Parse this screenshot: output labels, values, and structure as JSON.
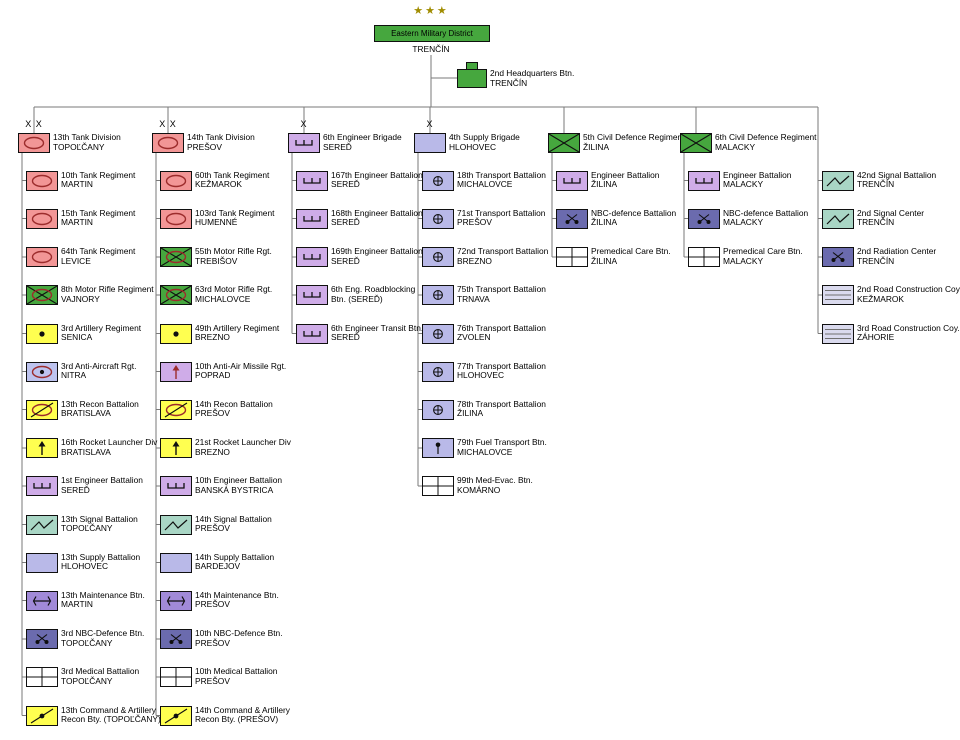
{
  "palette": {
    "green": "#46a73e",
    "line": "#7a7a7a",
    "stars": "#a08c00"
  },
  "header": {
    "stars": "★★★",
    "district": {
      "name": "Eastern Military District",
      "location": "TRENČÍN"
    },
    "hq": {
      "name": "2nd Headquarters Btn.",
      "location": "TRENČÍN",
      "type": "hq"
    }
  },
  "types": {
    "armor": {
      "fill": "#f29696",
      "symbol": "oval"
    },
    "motor-rifle": {
      "fill": "#46a73e",
      "symbol": "oval-x"
    },
    "infantry": {
      "fill": "#46a73e",
      "symbol": "x"
    },
    "artillery": {
      "fill": "#ffff50",
      "symbol": "dot"
    },
    "anti-air": {
      "fill": "#bdc3ee",
      "symbol": "oval-dot"
    },
    "aa-missile": {
      "fill": "#cface8",
      "symbol": "missile"
    },
    "recon": {
      "fill": "#ffff50",
      "symbol": "oval-slash"
    },
    "rocket": {
      "fill": "#ffff50",
      "symbol": "missile-dark"
    },
    "engineer": {
      "fill": "#cface8",
      "symbol": "engineer"
    },
    "signal": {
      "fill": "#a9d6c5",
      "symbol": "flash"
    },
    "supply": {
      "fill": "#b9b9e8",
      "symbol": "none"
    },
    "transport": {
      "fill": "#b9b9e8",
      "symbol": "wheel"
    },
    "fuel": {
      "fill": "#b9b9e8",
      "symbol": "pol"
    },
    "maintenance": {
      "fill": "#a18ad8",
      "symbol": "wrench"
    },
    "nbc": {
      "fill": "#6b6bae",
      "symbol": "retorts"
    },
    "radiation": {
      "fill": "#6b6bae",
      "symbol": "retorts"
    },
    "medical": {
      "fill": "#ffffff",
      "symbol": "cross"
    },
    "road": {
      "fill": "#dadaee",
      "symbol": "stripes"
    },
    "cmd-recon": {
      "fill": "#ffff50",
      "symbol": "dot-slash"
    },
    "hq": {
      "fill": "#46a73e",
      "symbol": "hq"
    }
  },
  "columns": [
    {
      "echelon": "X X",
      "head": {
        "name": "13th Tank Division",
        "location": "TOPOĽČANY",
        "type": "armor"
      },
      "units": [
        {
          "name": "10th Tank Regiment",
          "location": "MARTIN",
          "type": "armor"
        },
        {
          "name": "15th Tank Regiment",
          "location": "MARTIN",
          "type": "armor"
        },
        {
          "name": "64th Tank Regiment",
          "location": "LEVICE",
          "type": "armor"
        },
        {
          "name": "8th Motor Rifle Regiment",
          "location": "VAJNORY",
          "type": "motor-rifle"
        },
        {
          "name": "3rd Artillery Regiment",
          "location": "SENICA",
          "type": "artillery"
        },
        {
          "name": "3rd Anti-Aircraft Rgt.",
          "location": "NITRA",
          "type": "anti-air"
        },
        {
          "name": "13th Recon Battalion",
          "location": "BRATISLAVA",
          "type": "recon"
        },
        {
          "name": "16th Rocket Launcher Div",
          "location": "BRATISLAVA",
          "type": "rocket"
        },
        {
          "name": "1st Engineer Battalion",
          "location": "SEREĎ",
          "type": "engineer"
        },
        {
          "name": "13th Signal Battalion",
          "location": "TOPOĽČANY",
          "type": "signal"
        },
        {
          "name": "13th Supply Battalion",
          "location": "HLOHOVEC",
          "type": "supply"
        },
        {
          "name": "13th Maintenance Btn.",
          "location": "MARTIN",
          "type": "maintenance"
        },
        {
          "name": "3rd NBC-Defence Btn.",
          "location": "TOPOĽČANY",
          "type": "nbc"
        },
        {
          "name": "3rd Medical Battalion",
          "location": "TOPOĽČANY",
          "type": "medical"
        },
        {
          "name": "13th Command & Artillery",
          "location": "Recon Bty. (TOPOĽČANY)",
          "type": "cmd-recon"
        }
      ]
    },
    {
      "echelon": "X X",
      "head": {
        "name": "14th Tank Division",
        "location": "PREŠOV",
        "type": "armor"
      },
      "units": [
        {
          "name": "60th Tank Regiment",
          "location": "KEŽMAROK",
          "type": "armor"
        },
        {
          "name": "103rd Tank Regiment",
          "location": "HUMENNÉ",
          "type": "armor"
        },
        {
          "name": "55th Motor Rifle Rgt.",
          "location": "TREBIŠOV",
          "type": "motor-rifle"
        },
        {
          "name": "63rd Motor Rifle Rgt.",
          "location": "MICHALOVCE",
          "type": "motor-rifle"
        },
        {
          "name": "49th Artillery Regiment",
          "location": "BREZNO",
          "type": "artillery"
        },
        {
          "name": "10th Anti-Air Missile Rgt.",
          "location": "POPRAD",
          "type": "aa-missile"
        },
        {
          "name": "14th Recon Battalion",
          "location": "PREŠOV",
          "type": "recon"
        },
        {
          "name": "21st Rocket Launcher Div",
          "location": "BREZNO",
          "type": "rocket"
        },
        {
          "name": "10th Engineer Battalion",
          "location": "BANSKÁ BYSTRICA",
          "type": "engineer"
        },
        {
          "name": "14th Signal Battalion",
          "location": "PREŠOV",
          "type": "signal"
        },
        {
          "name": "14th Supply Battalion",
          "location": "BARDEJOV",
          "type": "supply"
        },
        {
          "name": "14th Maintenance Btn.",
          "location": "PREŠOV",
          "type": "maintenance"
        },
        {
          "name": "10th NBC-Defence Btn.",
          "location": "PREŠOV",
          "type": "nbc"
        },
        {
          "name": "10th Medical Battalion",
          "location": "PREŠOV",
          "type": "medical"
        },
        {
          "name": "14th Command & Artillery",
          "location": "Recon Bty. (PREŠOV)",
          "type": "cmd-recon"
        }
      ]
    },
    {
      "echelon": "X",
      "head": {
        "name": "6th Engineer Brigade",
        "location": "SEREĎ",
        "type": "engineer"
      },
      "units": [
        {
          "name": "167th Engineer Battalion",
          "location": "SEREĎ",
          "type": "engineer"
        },
        {
          "name": "168th Engineer Battalion",
          "location": "SEREĎ",
          "type": "engineer"
        },
        {
          "name": "169th Engineer Battalion",
          "location": "SEREĎ",
          "type": "engineer"
        },
        {
          "name": "6th Eng. Roadblocking",
          "location": "Btn. (SEREĎ)",
          "type": "engineer"
        },
        {
          "name": "6th Engineer Transit Btn.",
          "location": "SEREĎ",
          "type": "engineer"
        }
      ]
    },
    {
      "echelon": "X",
      "head": {
        "name": "4th Supply Brigade",
        "location": "HLOHOVEC",
        "type": "supply"
      },
      "units": [
        {
          "name": "18th Transport Battalion",
          "location": "MICHALOVCE",
          "type": "transport"
        },
        {
          "name": "71st Transport Battalion",
          "location": "PREŠOV",
          "type": "transport"
        },
        {
          "name": "72nd Transport Battalion",
          "location": "BREZNO",
          "type": "transport"
        },
        {
          "name": "75th Transport Battalion",
          "location": "TRNAVA",
          "type": "transport"
        },
        {
          "name": "76th Transport Battalion",
          "location": "ZVOLEN",
          "type": "transport"
        },
        {
          "name": "77th Transport Battalion",
          "location": "HLOHOVEC",
          "type": "transport"
        },
        {
          "name": "78th Transport Battalion",
          "location": "ŽILINA",
          "type": "transport"
        },
        {
          "name": "79th Fuel Transport Btn.",
          "location": "MICHALOVCE",
          "type": "fuel"
        },
        {
          "name": "99th Med-Evac. Btn.",
          "location": "KOMÁRNO",
          "type": "medical"
        }
      ]
    },
    {
      "echelon": "",
      "head": {
        "name": "5th Civil Defence Regiment",
        "location": "ŽILINA",
        "type": "infantry"
      },
      "units": [
        {
          "name": "Engineer Battalion",
          "location": "ŽILINA",
          "type": "engineer"
        },
        {
          "name": "NBC-defence Battalion",
          "location": "ŽILINA",
          "type": "nbc"
        },
        {
          "name": "Premedical Care Btn.",
          "location": "ŽILINA",
          "type": "medical"
        }
      ]
    },
    {
      "echelon": "",
      "head": {
        "name": "6th Civil Defence Regiment",
        "location": "MALACKY",
        "type": "infantry"
      },
      "units": [
        {
          "name": "Engineer Battalion",
          "location": "MALACKY",
          "type": "engineer"
        },
        {
          "name": "NBC-defence Battalion",
          "location": "MALACKY",
          "type": "nbc"
        },
        {
          "name": "Premedical Care Btn.",
          "location": "MALACKY",
          "type": "medical"
        }
      ]
    },
    {
      "echelon": "",
      "head": null,
      "units": [
        {
          "name": "42nd Signal Battalion",
          "location": "TRENČÍN",
          "type": "signal"
        },
        {
          "name": "2nd Signal Center",
          "location": "TRENČÍN",
          "type": "signal"
        },
        {
          "name": "2nd Radiation Center",
          "location": "TRENČÍN",
          "type": "radiation"
        },
        {
          "name": "2nd Road Construction Coy.",
          "location": "KEŽMAROK",
          "type": "road"
        },
        {
          "name": "3rd Road Construction Coy.",
          "location": "ZÁHORIE",
          "type": "road"
        }
      ]
    }
  ]
}
